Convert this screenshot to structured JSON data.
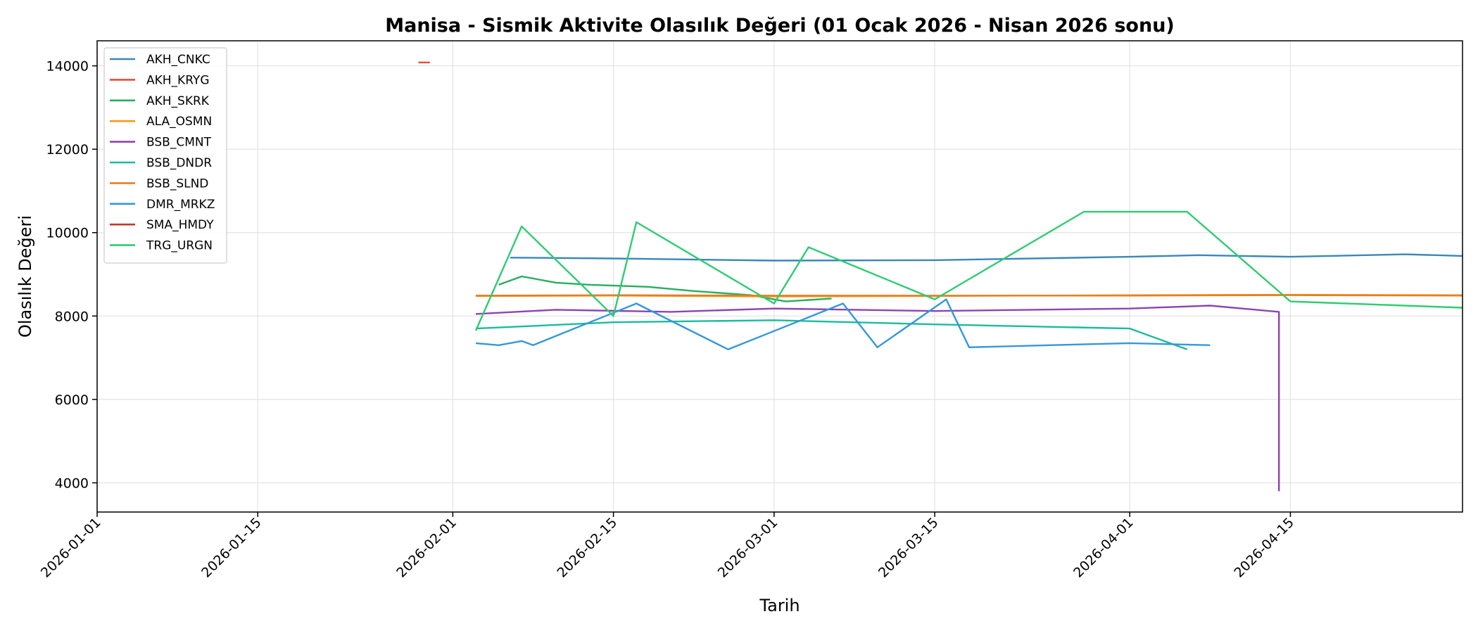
{
  "chart_data": {
    "type": "line",
    "title": "Manisa - Sismik Aktivite Olasılık Değeri (01 Ocak 2026 - Nisan 2026 sonu)",
    "xlabel": "Tarih",
    "ylabel": "Olasılık Değeri",
    "xlim": [
      "2026-01-01",
      "2026-04-30"
    ],
    "ylim": [
      3300,
      14600
    ],
    "x_ticks": [
      "2026-01-01",
      "2026-01-15",
      "2026-02-01",
      "2026-02-15",
      "2026-03-01",
      "2026-03-15",
      "2026-04-01",
      "2026-04-15"
    ],
    "y_ticks": [
      4000,
      6000,
      8000,
      10000,
      12000,
      14000
    ],
    "grid": true,
    "legend_position": "top-left",
    "series": [
      {
        "name": "AKH_CNKC",
        "color": "#3a87b8",
        "points": [
          [
            "2026-02-06",
            9400
          ],
          [
            "2026-02-15",
            9380
          ],
          [
            "2026-03-01",
            9330
          ],
          [
            "2026-03-15",
            9340
          ],
          [
            "2026-04-01",
            9420
          ],
          [
            "2026-04-07",
            9460
          ],
          [
            "2026-04-15",
            9420
          ],
          [
            "2026-04-25",
            9480
          ],
          [
            "2026-04-30",
            9440
          ]
        ]
      },
      {
        "name": "AKH_KRYG",
        "color": "#e74c3c",
        "points": [
          [
            "2026-01-29",
            14080
          ],
          [
            "2026-01-30",
            14080
          ]
        ]
      },
      {
        "name": "AKH_SKRK",
        "color": "#27ae60",
        "points": [
          [
            "2026-02-05",
            8750
          ],
          [
            "2026-02-07",
            8950
          ],
          [
            "2026-02-10",
            8800
          ],
          [
            "2026-02-13",
            8750
          ],
          [
            "2026-02-18",
            8700
          ],
          [
            "2026-02-22",
            8600
          ],
          [
            "2026-02-27",
            8500
          ],
          [
            "2026-03-02",
            8350
          ],
          [
            "2026-03-06",
            8420
          ]
        ]
      },
      {
        "name": "ALA_OSMN",
        "color": "#f39c12",
        "points": [
          [
            "2026-02-03",
            8480
          ],
          [
            "2026-02-15",
            8490
          ],
          [
            "2026-03-01",
            8470
          ],
          [
            "2026-03-15",
            8480
          ],
          [
            "2026-04-01",
            8500
          ],
          [
            "2026-04-15",
            8510
          ],
          [
            "2026-04-30",
            8500
          ]
        ]
      },
      {
        "name": "BSB_CMNT",
        "color": "#8e44ad",
        "points": [
          [
            "2026-02-03",
            8050
          ],
          [
            "2026-02-10",
            8150
          ],
          [
            "2026-02-20",
            8100
          ],
          [
            "2026-03-01",
            8180
          ],
          [
            "2026-03-15",
            8120
          ],
          [
            "2026-04-01",
            8180
          ],
          [
            "2026-04-08",
            8250
          ],
          [
            "2026-04-14",
            8100
          ],
          [
            "2026-04-14",
            3800
          ]
        ]
      },
      {
        "name": "BSB_DNDR",
        "color": "#1abc9c",
        "points": [
          [
            "2026-02-03",
            7700
          ],
          [
            "2026-02-15",
            7850
          ],
          [
            "2026-03-01",
            7900
          ],
          [
            "2026-03-15",
            7800
          ],
          [
            "2026-04-01",
            7700
          ],
          [
            "2026-04-06",
            7200
          ]
        ]
      },
      {
        "name": "BSB_SLND",
        "color": "#e67e22",
        "points": [
          [
            "2026-02-03",
            8490
          ],
          [
            "2026-02-15",
            8500
          ],
          [
            "2026-03-01",
            8490
          ],
          [
            "2026-03-15",
            8490
          ],
          [
            "2026-04-01",
            8490
          ],
          [
            "2026-04-15",
            8500
          ],
          [
            "2026-04-30",
            8490
          ]
        ]
      },
      {
        "name": "DMR_MRKZ",
        "color": "#3498db",
        "points": [
          [
            "2026-02-03",
            7350
          ],
          [
            "2026-02-05",
            7300
          ],
          [
            "2026-02-07",
            7400
          ],
          [
            "2026-02-08",
            7300
          ],
          [
            "2026-02-17",
            8300
          ],
          [
            "2026-02-25",
            7200
          ],
          [
            "2026-03-07",
            8300
          ],
          [
            "2026-03-10",
            7250
          ],
          [
            "2026-03-16",
            8400
          ],
          [
            "2026-03-18",
            7250
          ],
          [
            "2026-03-25",
            7300
          ],
          [
            "2026-04-01",
            7350
          ],
          [
            "2026-04-08",
            7300
          ]
        ]
      },
      {
        "name": "SMA_HMDY",
        "color": "#c0392b",
        "points": []
      },
      {
        "name": "TRG_URGN",
        "color": "#2ecc71",
        "points": [
          [
            "2026-02-03",
            7650
          ],
          [
            "2026-02-07",
            10150
          ],
          [
            "2026-02-15",
            8000
          ],
          [
            "2026-02-17",
            10250
          ],
          [
            "2026-03-01",
            8300
          ],
          [
            "2026-03-04",
            9650
          ],
          [
            "2026-03-15",
            8400
          ],
          [
            "2026-03-28",
            10500
          ],
          [
            "2026-04-06",
            10500
          ],
          [
            "2026-04-15",
            8350
          ],
          [
            "2026-04-30",
            8200
          ]
        ]
      }
    ]
  }
}
